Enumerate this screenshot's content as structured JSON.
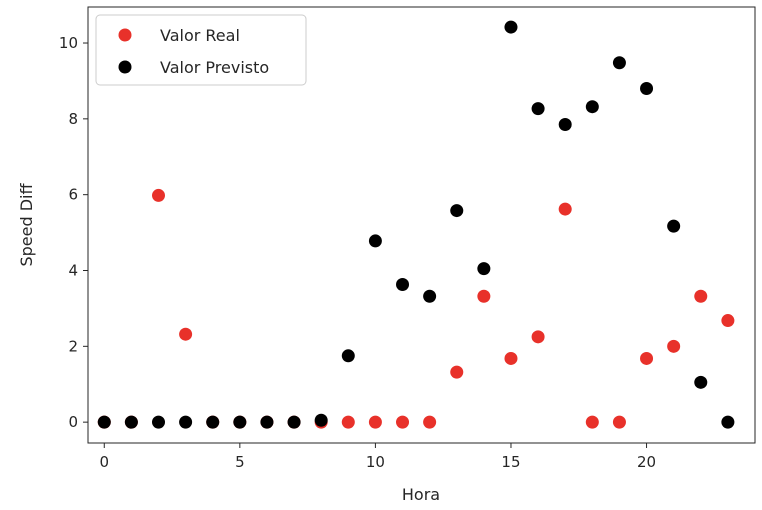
{
  "chart_data": {
    "type": "scatter",
    "title": "",
    "xlabel": "Hora",
    "ylabel": "Speed Diff",
    "xlim": [
      -0.6,
      24.0
    ],
    "ylim": [
      -0.55,
      10.95
    ],
    "xticks": [
      0,
      5,
      10,
      15,
      20
    ],
    "yticks": [
      0,
      2,
      4,
      6,
      8,
      10
    ],
    "grid": false,
    "legend_position": "top-left",
    "series": [
      {
        "name": "Valor Real",
        "color": "#e8312a",
        "x": [
          0,
          1,
          2,
          3,
          4,
          5,
          6,
          7,
          8,
          9,
          10,
          11,
          12,
          13,
          14,
          15,
          16,
          17,
          18,
          19,
          20,
          21,
          22,
          23
        ],
        "y": [
          0,
          0,
          5.98,
          2.32,
          0,
          0,
          0,
          0,
          0,
          0,
          0,
          0,
          0,
          1.32,
          3.32,
          1.68,
          2.25,
          5.62,
          0,
          0,
          1.68,
          2.0,
          3.32,
          2.68
        ]
      },
      {
        "name": "Valor Previsto",
        "color": "#000000",
        "x": [
          0,
          1,
          2,
          3,
          4,
          5,
          6,
          7,
          8,
          9,
          10,
          11,
          12,
          13,
          14,
          15,
          16,
          17,
          18,
          19,
          20,
          21,
          22,
          23
        ],
        "y": [
          0,
          0,
          0,
          0,
          0,
          0,
          0,
          0,
          0.05,
          1.75,
          4.78,
          3.63,
          3.32,
          5.58,
          4.05,
          10.42,
          8.27,
          7.85,
          8.32,
          9.48,
          8.8,
          5.17,
          1.05,
          0
        ]
      }
    ]
  }
}
